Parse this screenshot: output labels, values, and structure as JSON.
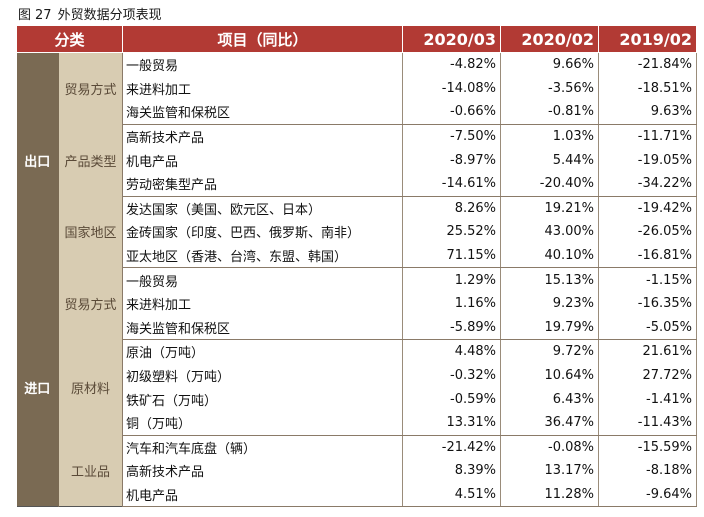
{
  "caption": {
    "label": "图",
    "number": "27",
    "title": "外贸数据分项表现"
  },
  "table": {
    "headers": [
      "分类",
      "项目（同比）",
      "2020/03",
      "2020/02",
      "2019/02"
    ],
    "sections": [
      {
        "name": "出口",
        "groups": [
          {
            "name": "贸易方式",
            "rows": [
              {
                "item": "一般贸易",
                "v1": "-4.82%",
                "v2": "9.66%",
                "v3": "-21.84%"
              },
              {
                "item": "来进料加工",
                "v1": "-14.08%",
                "v2": "-3.56%",
                "v3": "-18.51%"
              },
              {
                "item": "海关监管和保税区",
                "v1": "-0.66%",
                "v2": "-0.81%",
                "v3": "9.63%"
              }
            ]
          },
          {
            "name": "产品类型",
            "rows": [
              {
                "item": "高新技术产品",
                "v1": "-7.50%",
                "v2": "1.03%",
                "v3": "-11.71%"
              },
              {
                "item": "机电产品",
                "v1": "-8.97%",
                "v2": "5.44%",
                "v3": "-19.05%"
              },
              {
                "item": "劳动密集型产品",
                "v1": "-14.61%",
                "v2": "-20.40%",
                "v3": "-34.22%"
              }
            ]
          },
          {
            "name": "国家地区",
            "rows": [
              {
                "item": "发达国家（美国、欧元区、日本）",
                "v1": "8.26%",
                "v2": "19.21%",
                "v3": "-19.42%"
              },
              {
                "item": "金砖国家（印度、巴西、俄罗斯、南非）",
                "v1": "25.52%",
                "v2": "43.00%",
                "v3": "-26.05%"
              },
              {
                "item": "亚太地区（香港、台湾、东盟、韩国）",
                "v1": "71.15%",
                "v2": "40.10%",
                "v3": "-16.81%"
              }
            ]
          }
        ]
      },
      {
        "name": "进口",
        "groups": [
          {
            "name": "贸易方式",
            "rows": [
              {
                "item": "一般贸易",
                "v1": "1.29%",
                "v2": "15.13%",
                "v3": "-1.15%"
              },
              {
                "item": "来进料加工",
                "v1": "1.16%",
                "v2": "9.23%",
                "v3": "-16.35%"
              },
              {
                "item": "海关监管和保税区",
                "v1": "-5.89%",
                "v2": "19.79%",
                "v3": "-5.05%"
              }
            ]
          },
          {
            "name": "原材料",
            "rows": [
              {
                "item": "原油（万吨）",
                "v1": "4.48%",
                "v2": "9.72%",
                "v3": "21.61%"
              },
              {
                "item": "初级塑料（万吨）",
                "v1": "-0.32%",
                "v2": "10.64%",
                "v3": "27.72%"
              },
              {
                "item": "铁矿石（万吨）",
                "v1": "-0.59%",
                "v2": "6.43%",
                "v3": "-1.41%"
              },
              {
                "item": "铜（万吨）",
                "v1": "13.31%",
                "v2": "36.47%",
                "v3": "-11.43%"
              }
            ]
          },
          {
            "name": "工业品",
            "rows": [
              {
                "item": "汽车和汽车底盘（辆）",
                "v1": "-21.42%",
                "v2": "-0.08%",
                "v3": "-15.59%"
              },
              {
                "item": "高新技术产品",
                "v1": "8.39%",
                "v2": "13.17%",
                "v3": "-8.18%"
              },
              {
                "item": "机电产品",
                "v1": "4.51%",
                "v2": "11.28%",
                "v3": "-9.64%"
              }
            ]
          }
        ]
      }
    ]
  }
}
